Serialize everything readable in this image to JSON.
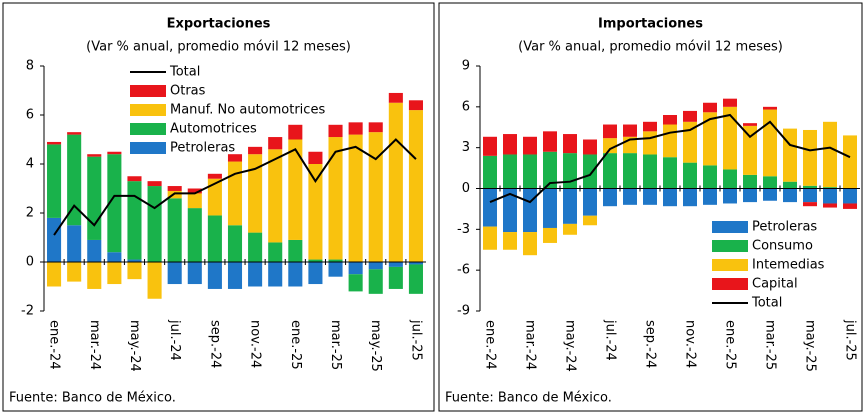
{
  "chart_data": [
    {
      "type": "bar",
      "stacked": true,
      "title": "Exportaciones",
      "subtitle": "(Var % anual, promedio móvil 12 meses)",
      "source": "Fuente: Banco de México.",
      "categories": [
        "ene.-24",
        null,
        "mar.-24",
        null,
        "may.-24",
        null,
        "jul.-24",
        null,
        "sep.-24",
        null,
        "nov.-24",
        null,
        "ene.-25",
        null,
        "mar.-25",
        null,
        "may.-25",
        null,
        "jul.-25"
      ],
      "ylim": [
        -2,
        8
      ],
      "yticks": [
        -2,
        0,
        2,
        4,
        6,
        8
      ],
      "legend": "upper left",
      "legend_order": "reverse",
      "series": [
        {
          "name": "Petroleras",
          "color": "#1f77c8",
          "values": [
            1.8,
            1.5,
            0.9,
            0.4,
            0.1,
            0,
            -0.9,
            -0.9,
            -1.1,
            -1.1,
            -1.0,
            -1.0,
            -1.0,
            -0.9,
            -0.6,
            -0.5,
            -0.3,
            -0.2,
            -0.1
          ]
        },
        {
          "name": "Automotrices",
          "color": "#19b24b",
          "values": [
            3.0,
            3.7,
            3.4,
            4.0,
            3.2,
            3.1,
            2.6,
            2.2,
            1.9,
            1.5,
            1.2,
            0.8,
            0.9,
            0.1,
            0.1,
            -0.7,
            -1.0,
            -0.9,
            -1.2
          ]
        },
        {
          "name": "Manuf. No automotrices",
          "color": "#f9c20e",
          "values": [
            -1.0,
            -0.8,
            -1.1,
            -0.9,
            -0.7,
            -1.5,
            0.3,
            0.6,
            1.5,
            2.6,
            3.2,
            3.8,
            4.1,
            3.9,
            5.0,
            5.2,
            5.3,
            6.5,
            6.2
          ]
        },
        {
          "name": "Otras",
          "color": "#e8151b",
          "values": [
            0.1,
            0.1,
            0.1,
            0.1,
            0.2,
            0.2,
            0.2,
            0.2,
            0.2,
            0.3,
            0.3,
            0.5,
            0.6,
            0.5,
            0.5,
            0.5,
            0.4,
            0.4,
            0.4
          ]
        },
        {
          "name": "Total",
          "type": "line",
          "color": "#000000",
          "values": [
            1.1,
            2.3,
            1.5,
            2.7,
            2.7,
            2.2,
            2.8,
            2.8,
            3.2,
            3.6,
            3.8,
            4.2,
            4.6,
            3.3,
            4.5,
            4.7,
            4.2,
            5.0,
            4.2
          ]
        }
      ]
    },
    {
      "type": "bar",
      "stacked": true,
      "title": "Importaciones",
      "subtitle": "(Var % anual, promedio móvil 12 meses)",
      "source": "Fuente: Banco de México.",
      "categories": [
        "ene.-24",
        null,
        "mar.-24",
        null,
        "may.-24",
        null,
        "jul.-24",
        null,
        "sep.-24",
        null,
        "nov.-24",
        null,
        "ene.-25",
        null,
        "mar.-25",
        null,
        "may.-25",
        null,
        "jul.-25"
      ],
      "ylim": [
        -9,
        9
      ],
      "yticks": [
        -9,
        -6,
        -3,
        0,
        3,
        6,
        9
      ],
      "legend": "lower right",
      "series": [
        {
          "name": "Petroleras",
          "color": "#1f77c8",
          "values": [
            -2.8,
            -3.2,
            -3.2,
            -2.9,
            -2.6,
            -2.0,
            -1.3,
            -1.2,
            -1.2,
            -1.3,
            -1.3,
            -1.2,
            -1.1,
            -1.0,
            -0.9,
            -1.0,
            -1.0,
            -1.1,
            -1.1
          ]
        },
        {
          "name": "Consumo",
          "color": "#19b24b",
          "values": [
            2.4,
            2.5,
            2.5,
            2.7,
            2.6,
            2.5,
            2.6,
            2.6,
            2.5,
            2.3,
            1.9,
            1.7,
            1.4,
            1.0,
            0.9,
            0.5,
            0.2,
            0.1,
            0.0
          ]
        },
        {
          "name": "Intemedias",
          "color": "#f9c20e",
          "values": [
            -1.7,
            -1.3,
            -1.7,
            -1.1,
            -0.8,
            -0.7,
            1.1,
            1.2,
            1.7,
            2.4,
            3.0,
            3.9,
            4.6,
            3.6,
            4.9,
            3.9,
            4.1,
            4.8,
            3.9
          ]
        },
        {
          "name": "Capital",
          "color": "#e8151b",
          "values": [
            1.4,
            1.5,
            1.3,
            1.5,
            1.4,
            1.1,
            1.0,
            0.9,
            0.7,
            0.7,
            0.8,
            0.7,
            0.6,
            0.2,
            0.2,
            0.0,
            -0.3,
            -0.3,
            -0.4
          ]
        },
        {
          "name": "Total",
          "type": "line",
          "color": "#000000",
          "values": [
            -1.0,
            -0.4,
            -1.0,
            0.4,
            0.5,
            1.0,
            2.9,
            3.6,
            3.7,
            4.1,
            4.3,
            5.1,
            5.4,
            3.8,
            4.9,
            3.2,
            2.8,
            3.0,
            2.3
          ]
        }
      ]
    }
  ]
}
